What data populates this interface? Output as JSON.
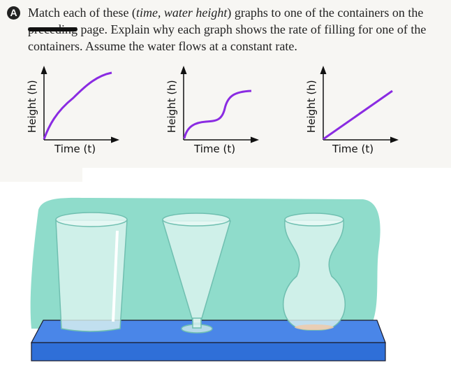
{
  "problem": {
    "badge": "A",
    "text_1": "Match each of these (",
    "text_italic": "time, water height",
    "text_2": ") graphs to one of the containers on the ",
    "struck_word": "preceding",
    "text_3": " page. Explain why each graph shows the rate of filling for one of the containers. Assume the water flows at a constant rate."
  },
  "graphs": [
    {
      "xlabel": "Time (t)",
      "ylabel": "Height (h)",
      "shape": "concave-down curve"
    },
    {
      "xlabel": "Time (t)",
      "ylabel": "Height (h)",
      "shape": "s-curve with plateau"
    },
    {
      "xlabel": "Time (t)",
      "ylabel": "Height (h)",
      "shape": "straight line"
    }
  ],
  "colors": {
    "curve": "#8a2be2",
    "backdrop": "#8fdccb",
    "shelf": "#4a86e8"
  },
  "containers": [
    "cylinder glass",
    "cone glass on base",
    "hourglass vase"
  ]
}
